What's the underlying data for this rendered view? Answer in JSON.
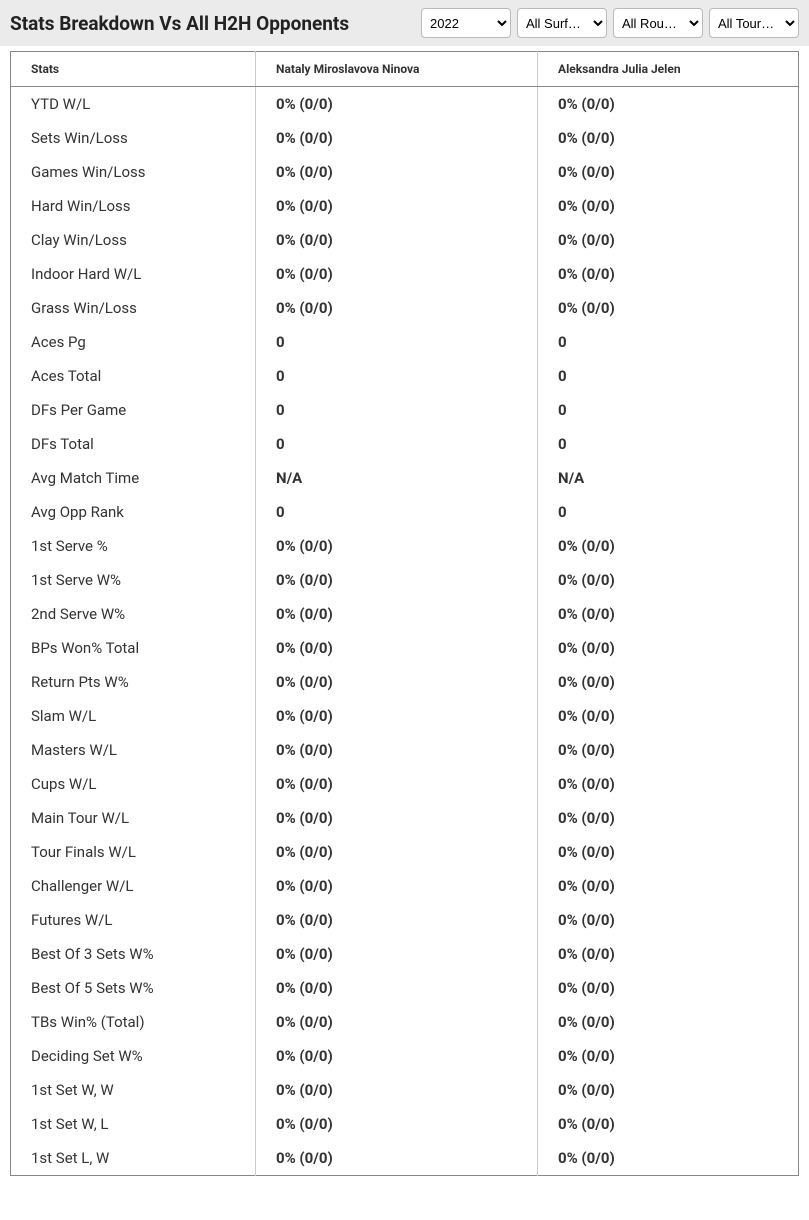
{
  "header": {
    "title": "Stats Breakdown Vs All H2H Opponents",
    "filters": {
      "year": "2022",
      "surface": "All Surf…",
      "round": "All Rou…",
      "tour": "All Tour…"
    }
  },
  "table": {
    "columns": [
      "Stats",
      "Nataly Miroslavova Ninova",
      "Aleksandra Julia Jelen"
    ],
    "rows": [
      [
        "YTD W/L",
        "0% (0/0)",
        "0% (0/0)"
      ],
      [
        "Sets Win/Loss",
        "0% (0/0)",
        "0% (0/0)"
      ],
      [
        "Games Win/Loss",
        "0% (0/0)",
        "0% (0/0)"
      ],
      [
        "Hard Win/Loss",
        "0% (0/0)",
        "0% (0/0)"
      ],
      [
        "Clay Win/Loss",
        "0% (0/0)",
        "0% (0/0)"
      ],
      [
        "Indoor Hard W/L",
        "0% (0/0)",
        "0% (0/0)"
      ],
      [
        "Grass Win/Loss",
        "0% (0/0)",
        "0% (0/0)"
      ],
      [
        "Aces Pg",
        "0",
        "0"
      ],
      [
        "Aces Total",
        "0",
        "0"
      ],
      [
        "DFs Per Game",
        "0",
        "0"
      ],
      [
        "DFs Total",
        "0",
        "0"
      ],
      [
        "Avg Match Time",
        "N/A",
        "N/A"
      ],
      [
        "Avg Opp Rank",
        "0",
        "0"
      ],
      [
        "1st Serve %",
        "0% (0/0)",
        "0% (0/0)"
      ],
      [
        "1st Serve W%",
        "0% (0/0)",
        "0% (0/0)"
      ],
      [
        "2nd Serve W%",
        "0% (0/0)",
        "0% (0/0)"
      ],
      [
        "BPs Won% Total",
        "0% (0/0)",
        "0% (0/0)"
      ],
      [
        "Return Pts W%",
        "0% (0/0)",
        "0% (0/0)"
      ],
      [
        "Slam W/L",
        "0% (0/0)",
        "0% (0/0)"
      ],
      [
        "Masters W/L",
        "0% (0/0)",
        "0% (0/0)"
      ],
      [
        "Cups W/L",
        "0% (0/0)",
        "0% (0/0)"
      ],
      [
        "Main Tour W/L",
        "0% (0/0)",
        "0% (0/0)"
      ],
      [
        "Tour Finals W/L",
        "0% (0/0)",
        "0% (0/0)"
      ],
      [
        "Challenger W/L",
        "0% (0/0)",
        "0% (0/0)"
      ],
      [
        "Futures W/L",
        "0% (0/0)",
        "0% (0/0)"
      ],
      [
        "Best Of 3 Sets W%",
        "0% (0/0)",
        "0% (0/0)"
      ],
      [
        "Best Of 5 Sets W%",
        "0% (0/0)",
        "0% (0/0)"
      ],
      [
        "TBs Win% (Total)",
        "0% (0/0)",
        "0% (0/0)"
      ],
      [
        "Deciding Set W%",
        "0% (0/0)",
        "0% (0/0)"
      ],
      [
        "1st Set W, W",
        "0% (0/0)",
        "0% (0/0)"
      ],
      [
        "1st Set W, L",
        "0% (0/0)",
        "0% (0/0)"
      ],
      [
        "1st Set L, W",
        "0% (0/0)",
        "0% (0/0)"
      ]
    ]
  },
  "style": {
    "header_bg": "#ebebeb",
    "border_color": "#888888",
    "col_divider": "#cccccc",
    "title_fontsize": 19,
    "header_cell_fontsize": 12,
    "body_cell_fontsize": 15
  }
}
